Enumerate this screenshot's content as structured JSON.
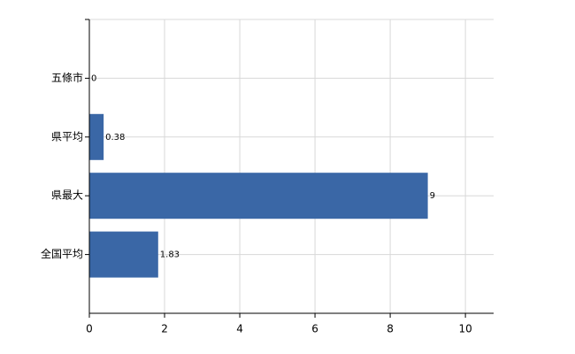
{
  "chart_data": {
    "type": "barh",
    "categories": [
      "五條市",
      "県平均",
      "県最大",
      "全国平均"
    ],
    "values": [
      0,
      0.38,
      9,
      1.83
    ],
    "color": "#3a67a6",
    "xlim": [
      0,
      10.75
    ],
    "xticks": [
      0,
      2,
      4,
      6,
      8,
      10
    ],
    "grid": true
  }
}
